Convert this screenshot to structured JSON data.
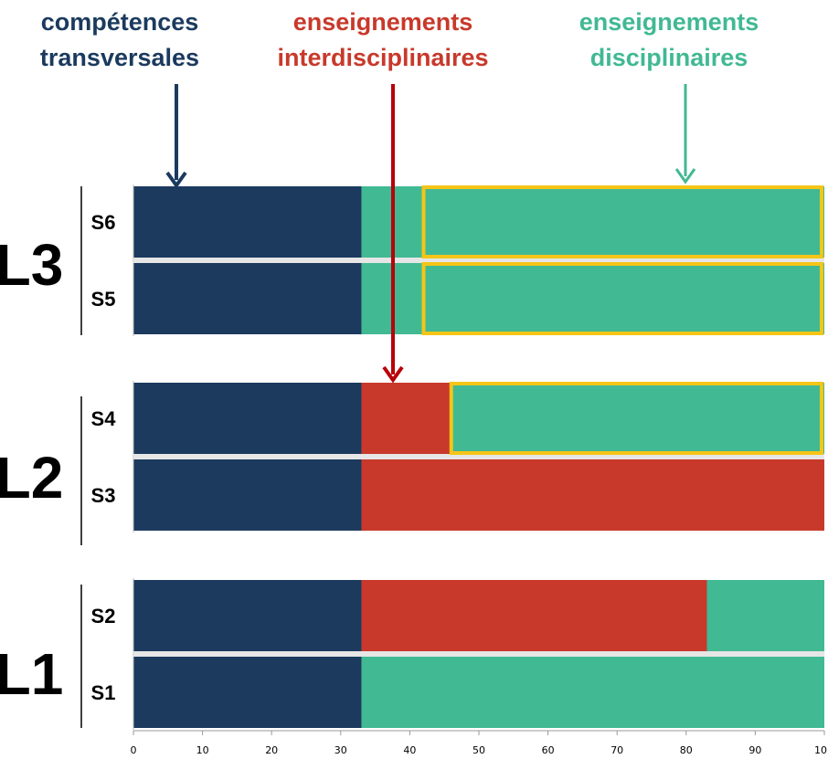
{
  "legend": [
    {
      "line1": "compétences",
      "line2": "transversales",
      "color": "#1b3a5e"
    },
    {
      "line1": "enseignements",
      "line2": "interdisciplinaires",
      "color": "#c8392b"
    },
    {
      "line1": "enseignements",
      "line2": "disciplinaires",
      "color": "#41b993"
    }
  ],
  "highlight_color": "#f5c518",
  "chart_data": {
    "type": "bar",
    "orientation": "horizontal",
    "stacked": true,
    "xlim": [
      0,
      100
    ],
    "xticks": [
      "0",
      "10",
      "20",
      "30",
      "40",
      "50",
      "60",
      "70",
      "80",
      "90",
      "10"
    ],
    "groups": [
      {
        "label": "L3",
        "semesters": [
          {
            "label": "S6",
            "segments": [
              {
                "type": "compétences transversales",
                "start": 0,
                "end": 33
              },
              {
                "type": "enseignements disciplinaires",
                "start": 33,
                "end": 100
              }
            ]
          },
          {
            "label": "S5",
            "segments": [
              {
                "type": "compétences transversales",
                "start": 0,
                "end": 33
              },
              {
                "type": "enseignements disciplinaires",
                "start": 33,
                "end": 100
              }
            ]
          }
        ]
      },
      {
        "label": "L2",
        "semesters": [
          {
            "label": "S4",
            "segments": [
              {
                "type": "compétences transversales",
                "start": 0,
                "end": 33
              },
              {
                "type": "enseignements interdisciplinaires",
                "start": 33,
                "end": 46
              },
              {
                "type": "enseignements disciplinaires",
                "start": 46,
                "end": 100
              }
            ]
          },
          {
            "label": "S3",
            "segments": [
              {
                "type": "compétences transversales",
                "start": 0,
                "end": 33
              },
              {
                "type": "enseignements interdisciplinaires",
                "start": 33,
                "end": 100
              }
            ]
          }
        ]
      },
      {
        "label": "L1",
        "semesters": [
          {
            "label": "S2",
            "segments": [
              {
                "type": "compétences transversales",
                "start": 0,
                "end": 33
              },
              {
                "type": "enseignements interdisciplinaires",
                "start": 33,
                "end": 83
              },
              {
                "type": "enseignements disciplinaires",
                "start": 83,
                "end": 100
              }
            ]
          },
          {
            "label": "S1",
            "segments": [
              {
                "type": "compétences transversales",
                "start": 0,
                "end": 33
              },
              {
                "type": "enseignements disciplinaires",
                "start": 33,
                "end": 100
              }
            ]
          }
        ]
      }
    ],
    "highlights": [
      {
        "semester": "S6",
        "start": 42,
        "end": 100
      },
      {
        "semester": "S5",
        "start": 42,
        "end": 100
      },
      {
        "semester": "S4",
        "start": 46,
        "end": 100
      }
    ]
  }
}
